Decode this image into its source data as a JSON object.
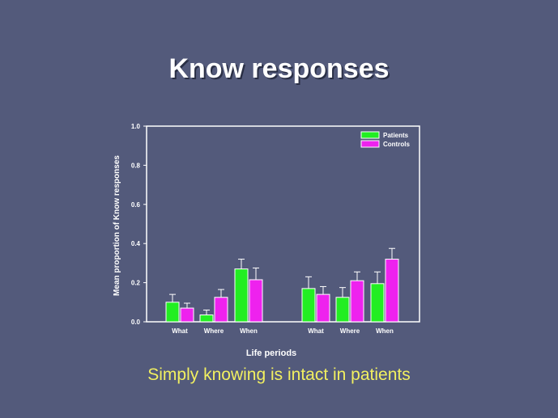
{
  "slide": {
    "title": "Know responses",
    "caption": "Simply knowing is intact in patients"
  },
  "chart_data": {
    "type": "bar",
    "title": "",
    "xlabel": "Life periods",
    "ylabel": "Mean proportion of Know responses",
    "ylim": [
      0,
      1.0
    ],
    "yticks": [
      "0.0",
      "0.2",
      "0.4",
      "0.6",
      "0.8",
      "1.0"
    ],
    "categories": [
      "What",
      "Where",
      "When",
      "What",
      "Where",
      "When"
    ],
    "series": [
      {
        "name": "Patients",
        "color": "#22ee22",
        "values": [
          0.1,
          0.035,
          0.27,
          0.17,
          0.125,
          0.195
        ],
        "errors": [
          0.04,
          0.025,
          0.05,
          0.06,
          0.05,
          0.06
        ]
      },
      {
        "name": "Controls",
        "color": "#ee22ee",
        "values": [
          0.07,
          0.125,
          0.215,
          0.14,
          0.21,
          0.32
        ],
        "errors": [
          0.025,
          0.04,
          0.06,
          0.04,
          0.045,
          0.055
        ]
      }
    ],
    "legend": "top-right",
    "grid": false
  }
}
